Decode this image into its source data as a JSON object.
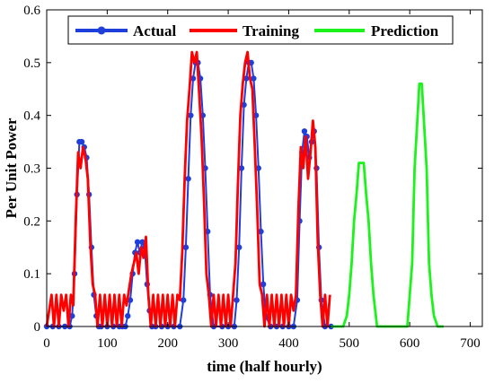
{
  "chart_data": {
    "type": "line",
    "xlabel": "time (half hourly)",
    "ylabel": "Per Unit Power",
    "xlim": [
      0,
      720
    ],
    "ylim": [
      0,
      0.6
    ],
    "x_ticks": [
      "0",
      "100",
      "200",
      "300",
      "400",
      "500",
      "600",
      "700"
    ],
    "y_ticks": [
      "0",
      "0.1",
      "0.2",
      "0.3",
      "0.4",
      "0.5",
      "0.6"
    ],
    "legend_position": "top",
    "series": [
      {
        "name": "Actual",
        "color": "#1f3fdb",
        "marker": "circle",
        "x": [
          0,
          10,
          20,
          30,
          38,
          42,
          46,
          50,
          54,
          58,
          62,
          66,
          70,
          74,
          78,
          82,
          86,
          90,
          100,
          110,
          120,
          125,
          130,
          134,
          138,
          142,
          146,
          150,
          154,
          158,
          162,
          166,
          170,
          174,
          180,
          190,
          200,
          210,
          220,
          226,
          230,
          234,
          238,
          242,
          246,
          250,
          254,
          258,
          262,
          266,
          270,
          276,
          290,
          300,
          310,
          314,
          318,
          322,
          326,
          330,
          334,
          338,
          342,
          346,
          350,
          354,
          358,
          362,
          370,
          380,
          390,
          400,
          408,
          414,
          418,
          422,
          426,
          430,
          434,
          438,
          442,
          446,
          450,
          454,
          460,
          470
        ],
        "y": [
          0,
          0,
          0,
          0,
          0,
          0.02,
          0.1,
          0.25,
          0.35,
          0.35,
          0.34,
          0.32,
          0.25,
          0.15,
          0.06,
          0.02,
          0,
          0,
          0,
          0,
          0,
          0,
          0,
          0.02,
          0.05,
          0.1,
          0.14,
          0.16,
          0.14,
          0.16,
          0.15,
          0.08,
          0.03,
          0,
          0,
          0,
          0,
          0,
          0,
          0.05,
          0.15,
          0.28,
          0.4,
          0.47,
          0.5,
          0.5,
          0.47,
          0.4,
          0.3,
          0.18,
          0.06,
          0,
          0,
          0,
          0,
          0.05,
          0.15,
          0.3,
          0.42,
          0.47,
          0.5,
          0.5,
          0.47,
          0.4,
          0.3,
          0.18,
          0.08,
          0.02,
          0,
          0,
          0,
          0,
          0,
          0.05,
          0.2,
          0.33,
          0.37,
          0.36,
          0.32,
          0.35,
          0.37,
          0.3,
          0.15,
          0.05,
          0,
          0
        ]
      },
      {
        "name": "Training",
        "color": "#ff0000",
        "x": [
          0,
          8,
          12,
          16,
          20,
          24,
          28,
          32,
          36,
          40,
          44,
          48,
          52,
          56,
          60,
          64,
          68,
          72,
          76,
          80,
          84,
          88,
          92,
          96,
          100,
          104,
          108,
          112,
          116,
          120,
          124,
          128,
          132,
          136,
          140,
          144,
          148,
          152,
          156,
          160,
          164,
          168,
          172,
          176,
          180,
          184,
          188,
          192,
          196,
          200,
          204,
          208,
          212,
          216,
          220,
          224,
          228,
          232,
          236,
          240,
          244,
          248,
          252,
          256,
          260,
          264,
          268,
          272,
          276,
          280,
          284,
          288,
          292,
          296,
          300,
          304,
          308,
          312,
          316,
          320,
          324,
          328,
          332,
          336,
          340,
          344,
          348,
          352,
          356,
          360,
          364,
          368,
          372,
          376,
          380,
          384,
          388,
          392,
          396,
          400,
          404,
          408,
          412,
          416,
          420,
          424,
          428,
          432,
          436,
          440,
          444,
          448,
          452,
          456,
          460,
          464,
          468
        ],
        "y": [
          0,
          0.06,
          0,
          0.06,
          0,
          0.06,
          0.03,
          0.06,
          0,
          0.06,
          0.04,
          0.2,
          0.33,
          0.3,
          0.34,
          0.32,
          0.28,
          0.16,
          0.08,
          0.06,
          0,
          0.06,
          0,
          0.06,
          0,
          0.06,
          0,
          0.06,
          0,
          0.06,
          0,
          0.06,
          0.04,
          0.07,
          0.1,
          0.12,
          0.14,
          0.1,
          0.15,
          0.13,
          0.17,
          0.06,
          0,
          0.06,
          0,
          0.06,
          0,
          0.06,
          0,
          0.06,
          0,
          0.06,
          0,
          0.06,
          0.05,
          0.14,
          0.28,
          0.39,
          0.45,
          0.52,
          0.5,
          0.52,
          0.44,
          0.36,
          0.24,
          0.1,
          0.06,
          0,
          0.06,
          0,
          0.06,
          0,
          0.06,
          0,
          0.06,
          0,
          0.06,
          0.12,
          0.27,
          0.4,
          0.46,
          0.5,
          0.52,
          0.47,
          0.45,
          0.34,
          0.22,
          0.08,
          0.06,
          0,
          0.06,
          0,
          0.06,
          0,
          0.06,
          0,
          0.06,
          0,
          0.06,
          0,
          0.06,
          0.03,
          0.06,
          0.22,
          0.34,
          0.3,
          0.36,
          0.28,
          0.33,
          0.39,
          0.34,
          0.16,
          0.06,
          0,
          0.06,
          0,
          0.06
        ]
      },
      {
        "name": "Prediction",
        "color": "#1cf21c",
        "x": [
          470,
          490,
          496,
          500,
          504,
          508,
          512,
          516,
          520,
          524,
          528,
          532,
          536,
          540,
          546,
          580,
          596,
          600,
          604,
          608,
          612,
          616,
          620,
          624,
          628,
          632,
          636,
          640,
          646,
          656
        ],
        "y": [
          0,
          0,
          0.02,
          0.06,
          0.12,
          0.2,
          0.25,
          0.31,
          0.31,
          0.31,
          0.25,
          0.2,
          0.12,
          0.06,
          0,
          0,
          0,
          0.06,
          0.12,
          0.3,
          0.38,
          0.46,
          0.46,
          0.38,
          0.3,
          0.12,
          0.06,
          0.02,
          0,
          0
        ]
      }
    ]
  }
}
